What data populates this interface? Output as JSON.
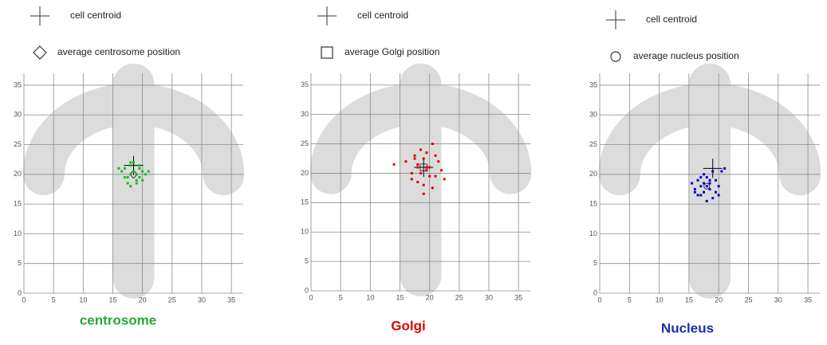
{
  "chart_data": [
    {
      "type": "scatter",
      "title": "centrosome",
      "title_color": "#22aa33",
      "xlim": [
        0,
        37
      ],
      "ylim": [
        0,
        37
      ],
      "xticks": [
        0,
        5,
        10,
        15,
        20,
        25,
        30,
        35
      ],
      "yticks": [
        0,
        5,
        10,
        15,
        20,
        25,
        30,
        35
      ],
      "grid": true,
      "series": [
        {
          "name": "cell centroid",
          "marker": "plus",
          "color": "#000000",
          "x": [
            18.5
          ],
          "values": [
            21.5
          ]
        },
        {
          "name": "average centrosome position",
          "marker": "diamond",
          "color": "#000000",
          "x": [
            18.5
          ],
          "values": [
            20
          ]
        },
        {
          "marker": "square",
          "color": "#1db81d",
          "x": [
            16.5,
            17,
            17.5,
            18,
            18,
            18.5,
            19,
            19,
            19.5,
            20,
            20.5,
            17.5,
            18,
            19,
            19.5,
            18.5,
            17,
            20,
            18,
            19.5,
            16,
            21
          ],
          "values": [
            20.5,
            21,
            19.5,
            20,
            21.5,
            22,
            20,
            19,
            21,
            20.5,
            20,
            18.5,
            18,
            18.5,
            21.5,
            20.5,
            19.5,
            19,
            22,
            19.5,
            21,
            20.5
          ]
        }
      ]
    },
    {
      "type": "scatter",
      "title": "Golgi",
      "title_color": "#e00000",
      "xlim": [
        0,
        37
      ],
      "ylim": [
        0,
        37
      ],
      "xticks": [
        0,
        5,
        10,
        15,
        20,
        25,
        30,
        35
      ],
      "yticks": [
        0,
        5,
        10,
        15,
        20,
        25,
        30,
        35
      ],
      "grid": true,
      "series": [
        {
          "name": "cell centroid",
          "marker": "plus",
          "color": "#000000",
          "x": [
            19
          ],
          "values": [
            21
          ]
        },
        {
          "name": "average Golgi position",
          "marker": "square",
          "color": "#000000",
          "x": [
            19
          ],
          "values": [
            21
          ]
        },
        {
          "marker": "square",
          "color": "#e00000",
          "x": [
            14,
            16,
            17,
            17.5,
            18,
            18.5,
            19,
            19.5,
            20,
            20.5,
            21,
            21.5,
            22,
            17,
            18,
            19,
            20,
            19.5,
            18.5,
            17.5,
            20.5,
            21,
            19,
            18,
            22.5,
            19.5
          ],
          "values": [
            21.5,
            22,
            20,
            23,
            21,
            24,
            22.5,
            20.5,
            21,
            25,
            19.5,
            22,
            20.5,
            19,
            18.5,
            18,
            19.5,
            23.5,
            20,
            22.5,
            17.5,
            23,
            16.5,
            21.5,
            19,
            21
          ]
        }
      ]
    },
    {
      "type": "scatter",
      "title": "Nucleus",
      "title_color": "#1a2fb0",
      "xlim": [
        0,
        37
      ],
      "ylim": [
        0,
        37
      ],
      "xticks": [
        0,
        5,
        10,
        15,
        20,
        25,
        30,
        35
      ],
      "yticks": [
        0,
        5,
        10,
        15,
        20,
        25,
        30,
        35
      ],
      "grid": true,
      "series": [
        {
          "name": "cell centroid",
          "marker": "plus",
          "color": "#000000",
          "x": [
            19
          ],
          "values": [
            21
          ]
        },
        {
          "name": "average nucleus position",
          "marker": "circle",
          "color": "#000000",
          "x": [
            18
          ],
          "values": [
            18
          ]
        },
        {
          "marker": "square",
          "color": "#0000cc",
          "x": [
            15.5,
            16,
            16.5,
            17,
            17,
            17.5,
            18,
            18,
            18.5,
            19,
            19.5,
            20,
            20.5,
            21,
            16.5,
            17.5,
            18.5,
            19.5,
            17,
            18,
            16,
            19,
            20,
            18.5,
            17.5
          ],
          "values": [
            18.5,
            17.5,
            19,
            18,
            16.5,
            17,
            19.5,
            18,
            18.5,
            16,
            19,
            18,
            20.5,
            21,
            16.5,
            20,
            17.5,
            17,
            19.5,
            15.5,
            17,
            20.5,
            16.5,
            19,
            18.5
          ]
        }
      ]
    }
  ]
}
